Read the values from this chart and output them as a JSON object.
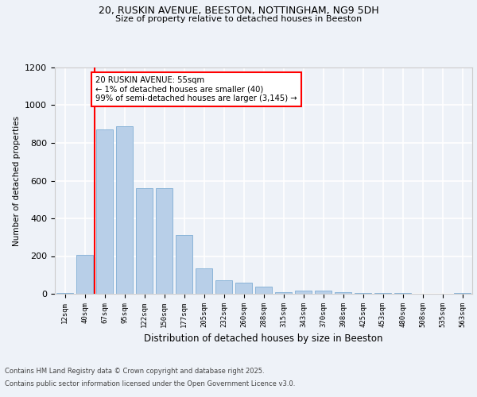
{
  "title1": "20, RUSKIN AVENUE, BEESTON, NOTTINGHAM, NG9 5DH",
  "title2": "Size of property relative to detached houses in Beeston",
  "xlabel": "Distribution of detached houses by size in Beeston",
  "ylabel": "Number of detached properties",
  "categories": [
    "12sqm",
    "40sqm",
    "67sqm",
    "95sqm",
    "122sqm",
    "150sqm",
    "177sqm",
    "205sqm",
    "232sqm",
    "260sqm",
    "288sqm",
    "315sqm",
    "343sqm",
    "370sqm",
    "398sqm",
    "425sqm",
    "453sqm",
    "480sqm",
    "508sqm",
    "535sqm",
    "563sqm"
  ],
  "values": [
    5,
    205,
    870,
    890,
    560,
    560,
    310,
    135,
    70,
    60,
    40,
    10,
    15,
    15,
    8,
    5,
    5,
    3,
    2,
    0,
    5
  ],
  "bar_color": "#b8cfe8",
  "bar_edge_color": "#8ab4d8",
  "annotation_title": "20 RUSKIN AVENUE: 55sqm",
  "annotation_line1": "← 1% of detached houses are smaller (40)",
  "annotation_line2": "99% of semi-detached houses are larger (3,145) →",
  "ylim": [
    0,
    1200
  ],
  "yticks": [
    0,
    200,
    400,
    600,
    800,
    1000,
    1200
  ],
  "footer_line1": "Contains HM Land Registry data © Crown copyright and database right 2025.",
  "footer_line2": "Contains public sector information licensed under the Open Government Licence v3.0.",
  "bg_color": "#eef2f8"
}
